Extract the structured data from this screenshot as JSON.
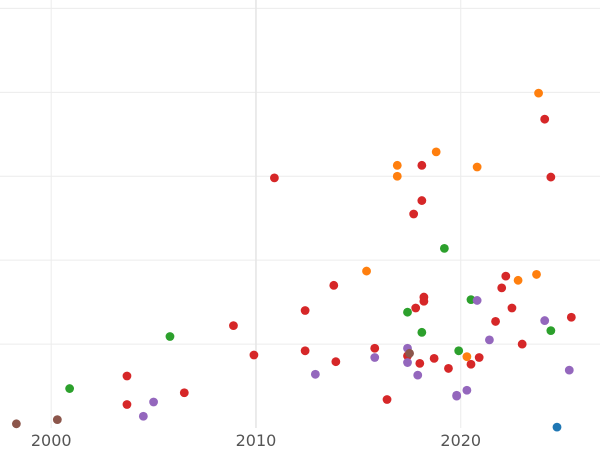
{
  "chart_data": {
    "type": "scatter",
    "title": "",
    "xlabel": "",
    "ylabel": "",
    "grid": true,
    "xlim": [
      1997.5,
      2026.8
    ],
    "ylim": [
      0,
      5.1
    ],
    "x_ticks": [
      2000,
      2010,
      2020
    ],
    "x_tick_labels": [
      "2000",
      "2010",
      "2020"
    ],
    "y_gridlines": [
      1,
      2,
      3,
      4,
      5
    ],
    "colors": {
      "red": "#d62728",
      "orange": "#ff7f0e",
      "green": "#2ca02c",
      "purple": "#9467bd",
      "brown": "#8c564b",
      "blue": "#1f77b4"
    },
    "series": [
      {
        "color": "#d62728",
        "points": [
          [
            2003.7,
            0.62
          ],
          [
            2003.7,
            0.28
          ],
          [
            2006.5,
            0.42
          ],
          [
            2008.9,
            1.22
          ],
          [
            2009.9,
            0.87
          ],
          [
            2010.9,
            2.98
          ],
          [
            2012.4,
            1.4
          ],
          [
            2012.4,
            0.92
          ],
          [
            2013.8,
            1.7
          ],
          [
            2013.9,
            0.79
          ],
          [
            2015.8,
            0.95
          ],
          [
            2016.4,
            0.34
          ],
          [
            2017.4,
            0.86
          ],
          [
            2017.7,
            2.55
          ],
          [
            2017.8,
            1.43
          ],
          [
            2018.0,
            0.77
          ],
          [
            2018.1,
            2.71
          ],
          [
            2018.1,
            3.13
          ],
          [
            2018.2,
            1.51
          ],
          [
            2018.2,
            1.56
          ],
          [
            2018.7,
            0.83
          ],
          [
            2019.4,
            0.71
          ],
          [
            2020.5,
            0.76
          ],
          [
            2020.9,
            0.84
          ],
          [
            2021.7,
            1.27
          ],
          [
            2022.0,
            1.67
          ],
          [
            2022.2,
            1.81
          ],
          [
            2022.5,
            1.43
          ],
          [
            2023.0,
            1.0
          ],
          [
            2024.1,
            3.68
          ],
          [
            2024.4,
            2.99
          ],
          [
            2025.4,
            1.32
          ]
        ]
      },
      {
        "color": "#ff7f0e",
        "points": [
          [
            2015.4,
            1.87
          ],
          [
            2016.9,
            3.13
          ],
          [
            2016.9,
            3.0
          ],
          [
            2018.8,
            3.29
          ],
          [
            2020.3,
            0.85
          ],
          [
            2020.8,
            3.11
          ],
          [
            2022.8,
            1.76
          ],
          [
            2023.7,
            1.83
          ],
          [
            2023.8,
            3.99
          ]
        ]
      },
      {
        "color": "#2ca02c",
        "points": [
          [
            2000.9,
            0.47
          ],
          [
            2005.8,
            1.09
          ],
          [
            2017.4,
            1.38
          ],
          [
            2018.1,
            1.14
          ],
          [
            2019.2,
            2.14
          ],
          [
            2019.9,
            0.92
          ],
          [
            2020.5,
            1.53
          ],
          [
            2024.4,
            1.16
          ]
        ]
      },
      {
        "color": "#9467bd",
        "points": [
          [
            2004.5,
            0.14
          ],
          [
            2005.0,
            0.31
          ],
          [
            2012.9,
            0.64
          ],
          [
            2015.8,
            0.84
          ],
          [
            2017.4,
            0.78
          ],
          [
            2017.4,
            0.95
          ],
          [
            2017.9,
            0.63
          ],
          [
            2019.8,
            0.39
          ],
          [
            2019.8,
            0.38
          ],
          [
            2020.3,
            0.45
          ],
          [
            2020.8,
            1.52
          ],
          [
            2021.4,
            1.05
          ],
          [
            2024.1,
            1.28
          ],
          [
            2025.3,
            0.69
          ]
        ]
      },
      {
        "color": "#8c564b",
        "points": [
          [
            1998.3,
            0.05
          ],
          [
            2000.3,
            0.1
          ],
          [
            2017.5,
            0.89
          ]
        ]
      },
      {
        "color": "#1f77b4",
        "points": [
          [
            2024.7,
            0.01
          ]
        ]
      }
    ]
  }
}
